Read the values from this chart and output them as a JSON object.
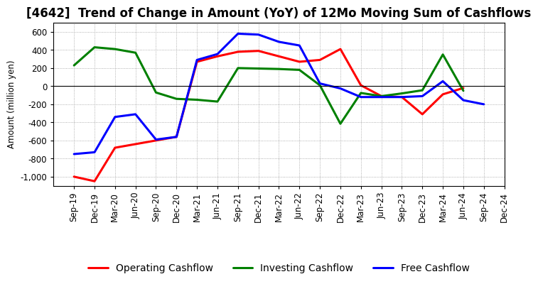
{
  "title": "[4642]  Trend of Change in Amount (YoY) of 12Mo Moving Sum of Cashflows",
  "ylabel": "Amount (million yen)",
  "x_labels": [
    "Sep-19",
    "Dec-19",
    "Mar-20",
    "Jun-20",
    "Sep-20",
    "Dec-20",
    "Mar-21",
    "Jun-21",
    "Sep-21",
    "Dec-21",
    "Mar-22",
    "Jun-22",
    "Sep-22",
    "Dec-22",
    "Mar-23",
    "Jun-23",
    "Sep-23",
    "Dec-23",
    "Mar-24",
    "Jun-24",
    "Sep-24",
    "Dec-24"
  ],
  "operating_cashflow": [
    -1000,
    -1050,
    -680,
    -640,
    -600,
    -560,
    270,
    330,
    380,
    390,
    330,
    270,
    290,
    410,
    10,
    -110,
    -120,
    -310,
    -90,
    -20,
    null,
    null
  ],
  "investing_cashflow": [
    230,
    430,
    410,
    370,
    -70,
    -140,
    -150,
    -170,
    200,
    195,
    190,
    180,
    10,
    -415,
    -75,
    -110,
    -80,
    -45,
    350,
    -50,
    null,
    null
  ],
  "free_cashflow": [
    -750,
    -730,
    -340,
    -310,
    -590,
    -560,
    290,
    355,
    580,
    570,
    490,
    450,
    30,
    -25,
    -120,
    -120,
    -120,
    -110,
    55,
    -155,
    -200,
    null
  ],
  "operating_color": "#ff0000",
  "investing_color": "#008000",
  "free_color": "#0000ff",
  "background_color": "#ffffff",
  "plot_bg_color": "#ffffff",
  "grid_color": "#999999",
  "ylim": [
    -1100,
    700
  ],
  "yticks": [
    -1000,
    -800,
    -600,
    -400,
    -200,
    0,
    200,
    400,
    600
  ],
  "linewidth": 2.2,
  "title_fontsize": 12,
  "legend_fontsize": 10,
  "tick_fontsize": 8.5
}
